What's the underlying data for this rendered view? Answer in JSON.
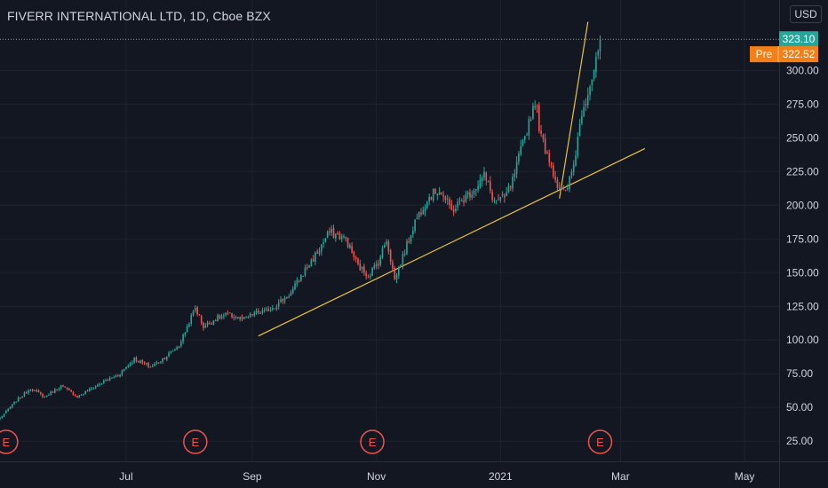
{
  "header": {
    "title": "FIVERR INTERNATIONAL LTD, 1D, Cboe BZX",
    "currency": "USD"
  },
  "price_labels": {
    "last": "323.10",
    "pre_tag": "Pre",
    "pre_value": "322.52"
  },
  "colors": {
    "up": "#26a69a",
    "down": "#ef5350",
    "trendline": "#e8c241",
    "last_label_bg": "#26a69a",
    "pre_label_bg": "#f57f17",
    "earnings": "#ef5350"
  },
  "earnings_marker": "E",
  "chart_data": {
    "type": "candlestick",
    "title": "FIVERR INTERNATIONAL LTD, 1D, Cboe BZX",
    "x_ticks": [
      {
        "label": "Jul",
        "day": 62
      },
      {
        "label": "Sep",
        "day": 124
      },
      {
        "label": "Nov",
        "day": 185
      },
      {
        "label": "2021",
        "day": 246
      },
      {
        "label": "Mar",
        "day": 305
      },
      {
        "label": "May",
        "day": 366
      }
    ],
    "y_ticks": [
      25,
      50,
      75,
      100,
      125,
      150,
      175,
      200,
      225,
      250,
      275,
      300
    ],
    "ylim": [
      10,
      343
    ],
    "xlim": [
      0,
      383
    ],
    "earnings_days": [
      3,
      96,
      183,
      295
    ],
    "trendlines": [
      {
        "from": {
          "day": 127,
          "price": 103
        },
        "to": {
          "day": 317,
          "price": 242
        }
      },
      {
        "from": {
          "day": 275,
          "price": 205
        },
        "to": {
          "day": 289,
          "price": 336
        }
      }
    ],
    "anchors": [
      {
        "day": 0,
        "price": 42
      },
      {
        "day": 8,
        "price": 55
      },
      {
        "day": 15,
        "price": 64
      },
      {
        "day": 22,
        "price": 58
      },
      {
        "day": 30,
        "price": 66
      },
      {
        "day": 38,
        "price": 58
      },
      {
        "day": 45,
        "price": 64
      },
      {
        "day": 52,
        "price": 70
      },
      {
        "day": 58,
        "price": 74
      },
      {
        "day": 66,
        "price": 86
      },
      {
        "day": 74,
        "price": 80
      },
      {
        "day": 80,
        "price": 86
      },
      {
        "day": 88,
        "price": 96
      },
      {
        "day": 92,
        "price": 110
      },
      {
        "day": 96,
        "price": 124
      },
      {
        "day": 100,
        "price": 110
      },
      {
        "day": 106,
        "price": 116
      },
      {
        "day": 112,
        "price": 119
      },
      {
        "day": 120,
        "price": 115
      },
      {
        "day": 125,
        "price": 120
      },
      {
        "day": 130,
        "price": 121
      },
      {
        "day": 136,
        "price": 126
      },
      {
        "day": 143,
        "price": 135
      },
      {
        "day": 150,
        "price": 152
      },
      {
        "day": 156,
        "price": 165
      },
      {
        "day": 162,
        "price": 180
      },
      {
        "day": 170,
        "price": 175
      },
      {
        "day": 176,
        "price": 155
      },
      {
        "day": 181,
        "price": 148
      },
      {
        "day": 186,
        "price": 158
      },
      {
        "day": 190,
        "price": 175
      },
      {
        "day": 194,
        "price": 145
      },
      {
        "day": 198,
        "price": 162
      },
      {
        "day": 204,
        "price": 188
      },
      {
        "day": 210,
        "price": 205
      },
      {
        "day": 216,
        "price": 212
      },
      {
        "day": 222,
        "price": 196
      },
      {
        "day": 228,
        "price": 205
      },
      {
        "day": 233,
        "price": 212
      },
      {
        "day": 238,
        "price": 222
      },
      {
        "day": 243,
        "price": 203
      },
      {
        "day": 248,
        "price": 205
      },
      {
        "day": 252,
        "price": 218
      },
      {
        "day": 256,
        "price": 240
      },
      {
        "day": 260,
        "price": 262
      },
      {
        "day": 263,
        "price": 278
      },
      {
        "day": 266,
        "price": 250
      },
      {
        "day": 270,
        "price": 235
      },
      {
        "day": 274,
        "price": 215
      },
      {
        "day": 278,
        "price": 208
      },
      {
        "day": 282,
        "price": 230
      },
      {
        "day": 286,
        "price": 270
      },
      {
        "day": 290,
        "price": 290
      },
      {
        "day": 293,
        "price": 305
      },
      {
        "day": 295,
        "price": 323
      }
    ]
  }
}
